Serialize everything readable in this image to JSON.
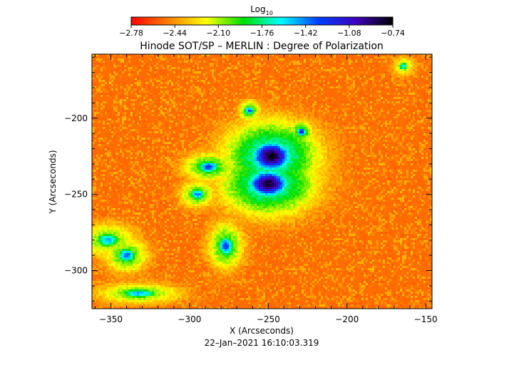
{
  "chart_data": {
    "type": "heatmap",
    "title": "Hinode SOT/SP – MERLIN : Degree of Polarization",
    "xlabel": "X (Arcseconds)",
    "ylabel": "Y (Arcseconds)",
    "timestamp": "22–Jan–2021 16:10:03.319",
    "xlim": [
      -362,
      -146
    ],
    "ylim": [
      -325,
      -158
    ],
    "x_ticks": [
      {
        "value": -350,
        "label": "−350"
      },
      {
        "value": -300,
        "label": "−300"
      },
      {
        "value": -250,
        "label": "−250"
      },
      {
        "value": -200,
        "label": "−200"
      },
      {
        "value": -150,
        "label": "−150"
      }
    ],
    "y_ticks": [
      {
        "value": -200,
        "label": "−200"
      },
      {
        "value": -250,
        "label": "−250"
      },
      {
        "value": -300,
        "label": "−300"
      }
    ],
    "colorbar": {
      "title_main": "Log",
      "title_sub": "10",
      "scale": "log10",
      "range": [
        -2.78,
        -0.74
      ],
      "tick_labels": [
        "−2.78",
        "−2.44",
        "−2.10",
        "−1.76",
        "−1.42",
        "−1.08",
        "−0.74"
      ],
      "colors": [
        "#ff0000",
        "#ff8000",
        "#ffff00",
        "#00e000",
        "#00ffff",
        "#0040ff",
        "#4000c0",
        "#000000"
      ]
    },
    "background_level": -2.6,
    "features": [
      {
        "name": "sunspot-north",
        "x": -248,
        "y": -225,
        "rx": 13,
        "ry": 10,
        "level": -0.78
      },
      {
        "name": "sunspot-south",
        "x": -250,
        "y": -243,
        "rx": 13,
        "ry": 9,
        "level": -0.8
      },
      {
        "name": "plage-left-1",
        "x": -288,
        "y": -232,
        "rx": 7,
        "ry": 4,
        "level": -1.25
      },
      {
        "name": "plage-left-2",
        "x": -295,
        "y": -250,
        "rx": 5,
        "ry": 4,
        "level": -1.4
      },
      {
        "name": "plage-center-low",
        "x": -277,
        "y": -284,
        "rx": 5,
        "ry": 7,
        "level": -1.3
      },
      {
        "name": "plage-bottom-left",
        "x": -332,
        "y": -315,
        "rx": 12,
        "ry": 3,
        "level": -1.45
      },
      {
        "name": "plage-far-left",
        "x": -352,
        "y": -280,
        "rx": 8,
        "ry": 5,
        "level": -1.5
      },
      {
        "name": "plage-mid-left",
        "x": -340,
        "y": -290,
        "rx": 6,
        "ry": 5,
        "level": -1.35
      },
      {
        "name": "pore-right",
        "x": -229,
        "y": -209,
        "rx": 3,
        "ry": 3,
        "level": -1.1
      },
      {
        "name": "pore-top",
        "x": -262,
        "y": -195,
        "rx": 3,
        "ry": 3,
        "level": -1.3
      },
      {
        "name": "pore-far-right",
        "x": -164,
        "y": -166,
        "rx": 3,
        "ry": 3,
        "level": -1.6
      }
    ]
  }
}
